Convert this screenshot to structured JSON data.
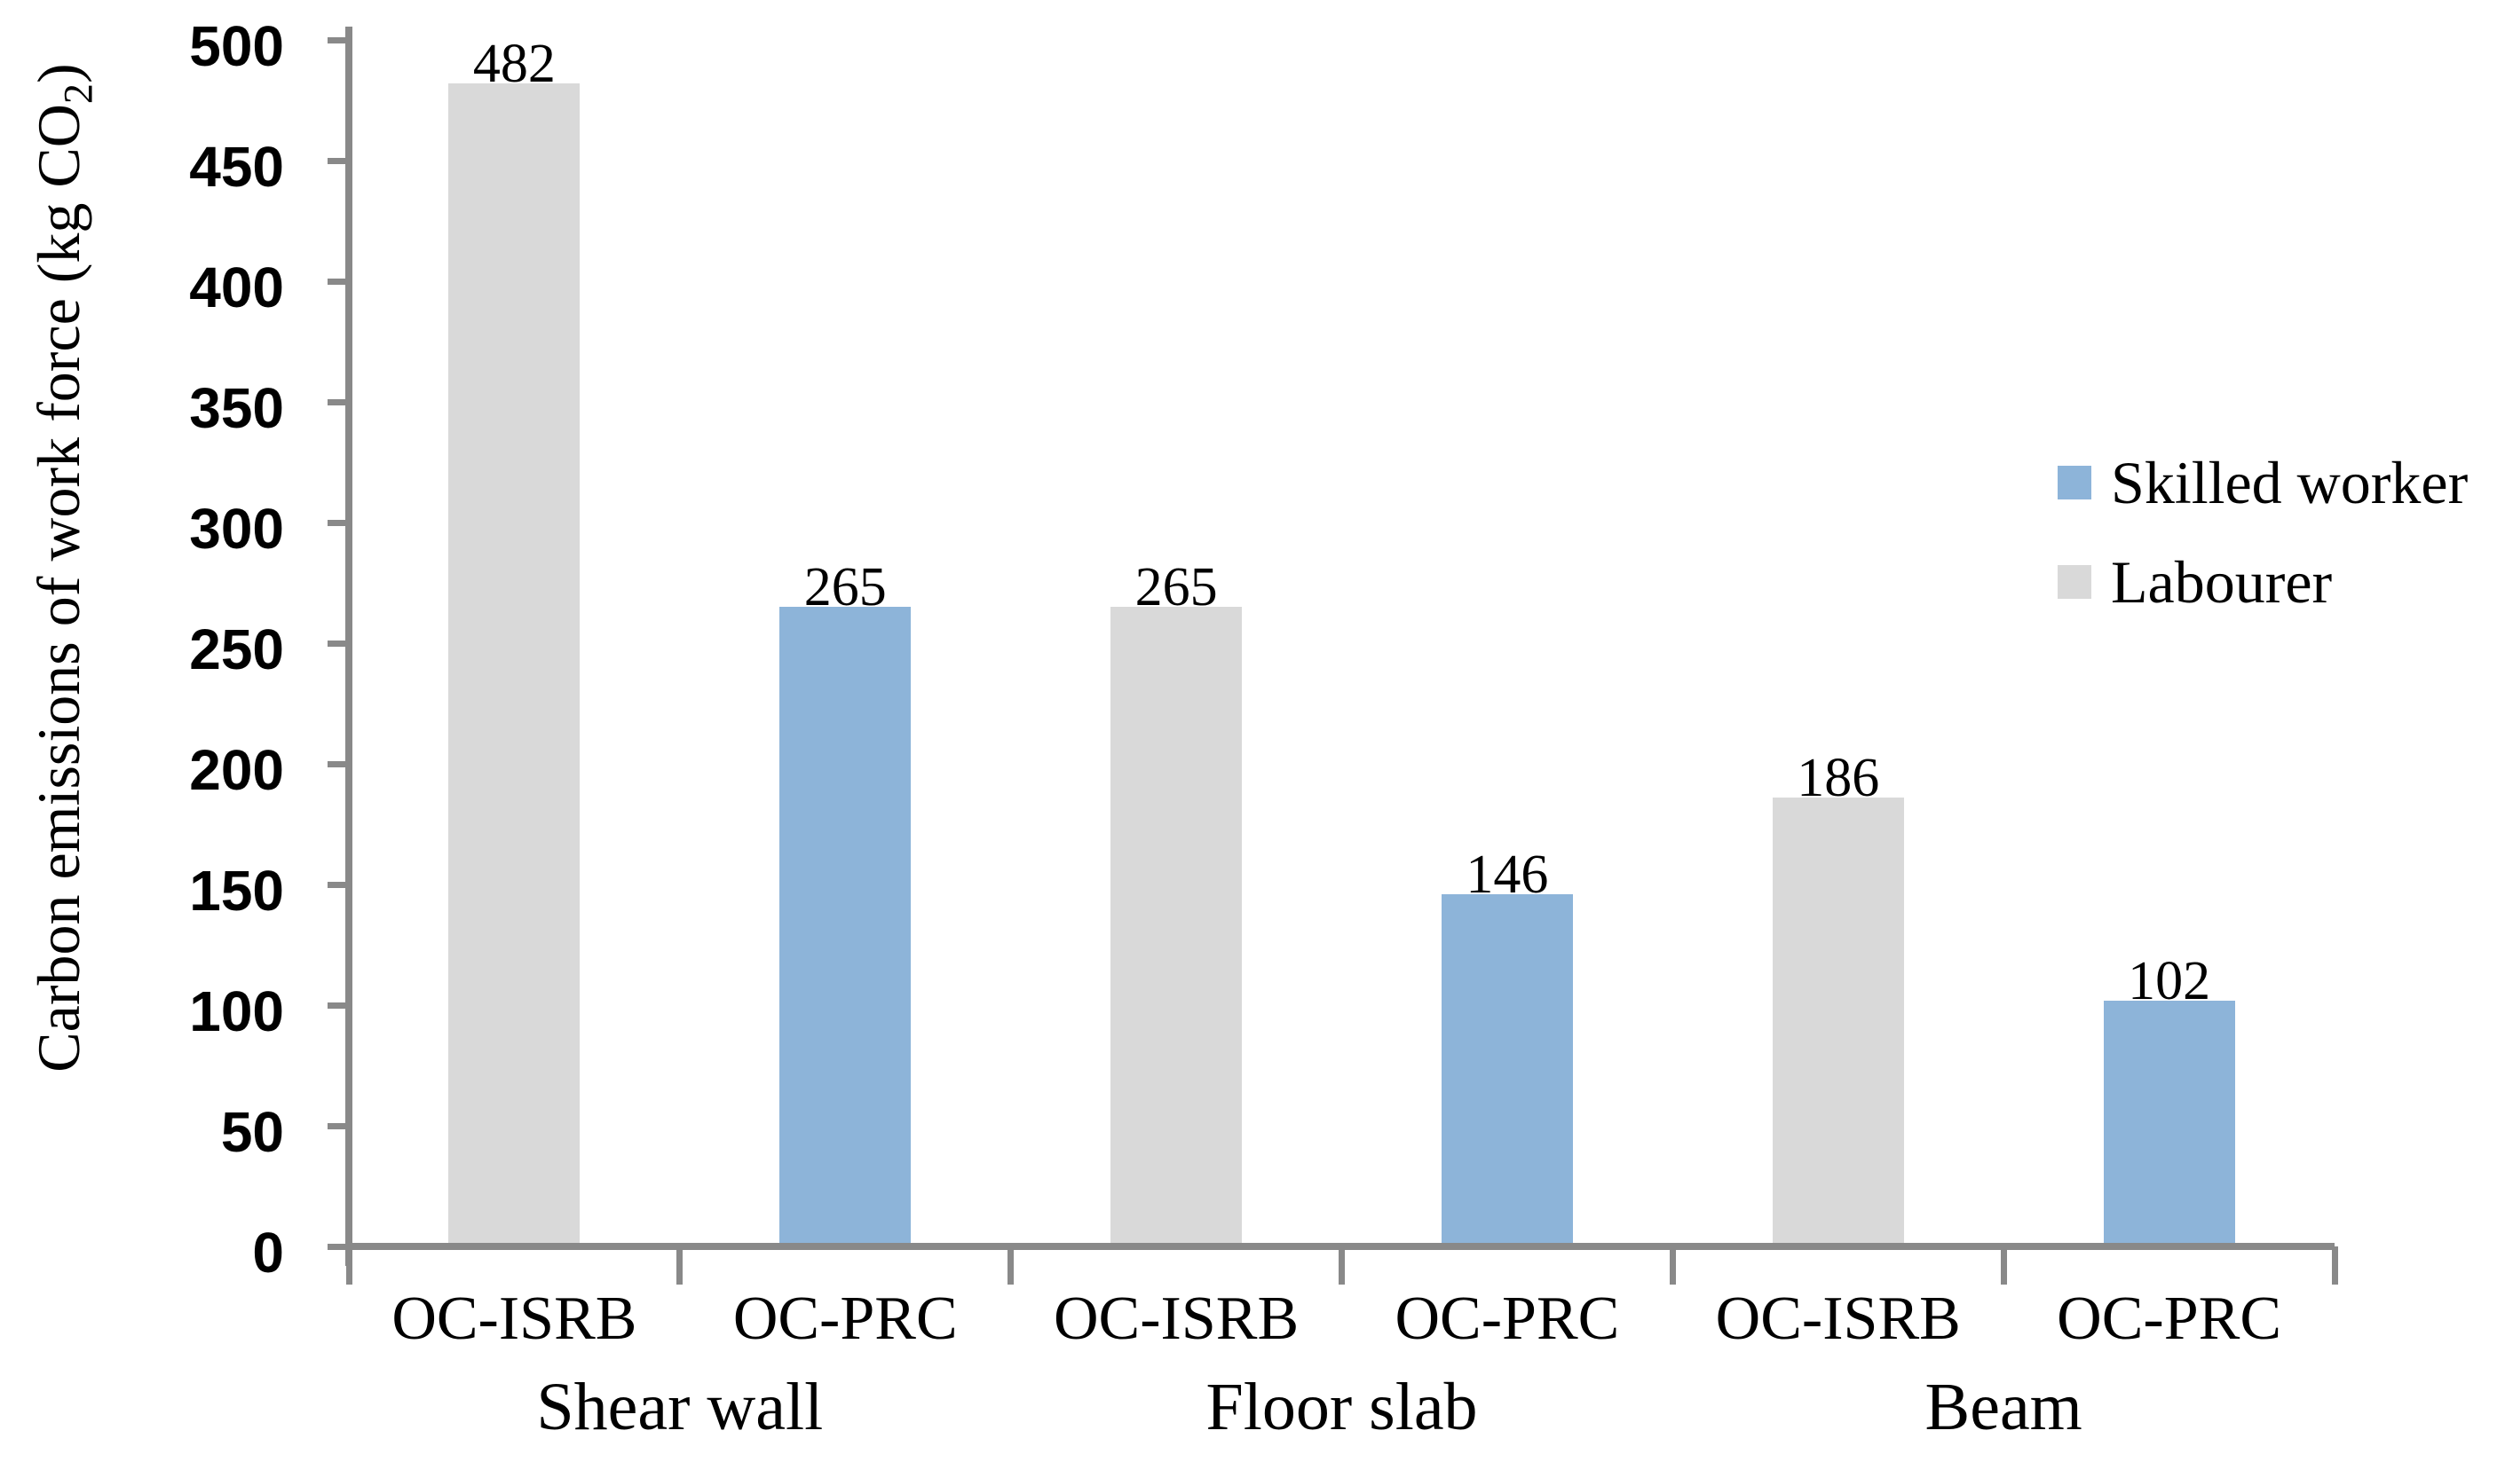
{
  "chart_data": {
    "type": "bar",
    "title": "",
    "ylabel": {
      "prefix": "Carbon emissions of  work force (kg CO",
      "sub": "2",
      "suffix": ")"
    },
    "xlabel": "",
    "ylim": [
      0,
      500
    ],
    "ytick_step": 50,
    "yticks": [
      500,
      450,
      400,
      350,
      300,
      250,
      200,
      150,
      100,
      50,
      0
    ],
    "grid": false,
    "legend_position": "right",
    "data_labels": true,
    "axis_color": "#898989",
    "groups": [
      "Shear wall",
      "Floor slab",
      "Beam"
    ],
    "bars": [
      {
        "category": "OC-ISRB",
        "group": "Shear wall",
        "series": "Labourer",
        "value": 482
      },
      {
        "category": "OC-PRC",
        "group": "Shear wall",
        "series": "Skilled worker",
        "value": 265
      },
      {
        "category": "OC-ISRB",
        "group": "Floor slab",
        "series": "Labourer",
        "value": 265
      },
      {
        "category": "OC-PRC",
        "group": "Floor slab",
        "series": "Skilled worker",
        "value": 146
      },
      {
        "category": "OC-ISRB",
        "group": "Beam",
        "series": "Labourer",
        "value": 186
      },
      {
        "category": "OC-PRC",
        "group": "Beam",
        "series": "Skilled worker",
        "value": 102
      }
    ],
    "series": [
      {
        "name": "Skilled worker",
        "color": "#8DB4D9"
      },
      {
        "name": "Labourer",
        "color": "#D9D9D9"
      }
    ]
  }
}
